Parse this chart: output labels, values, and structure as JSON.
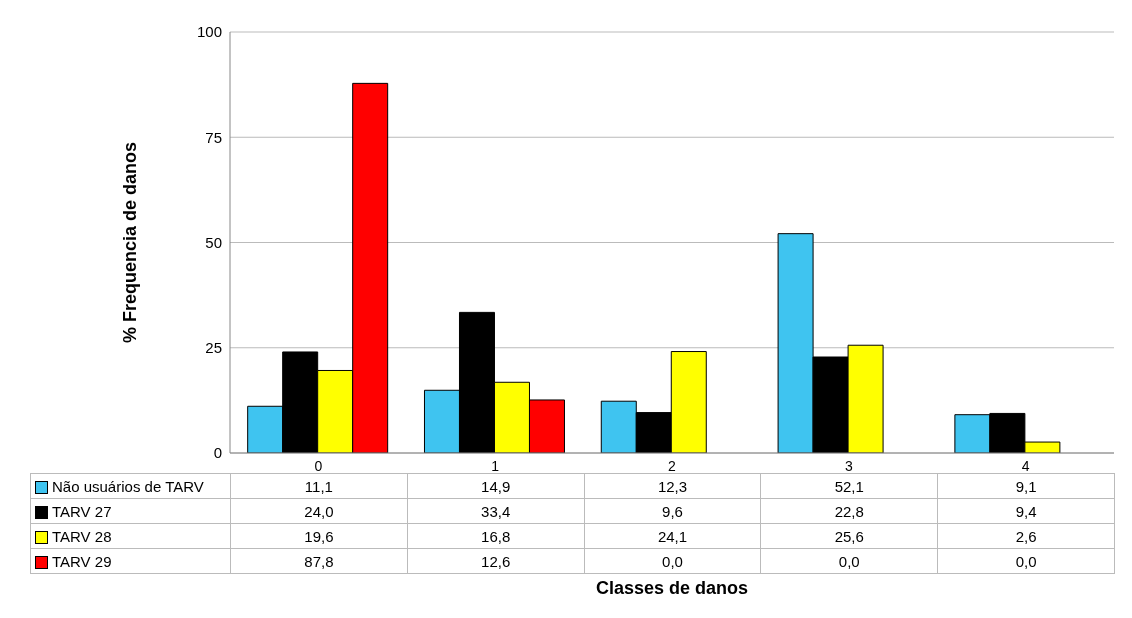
{
  "chart_data": {
    "type": "bar",
    "annotations": [
      "Classes de danos"
    ],
    "ylabel": "% Frequencia de danos",
    "categories": [
      "0",
      "1",
      "2",
      "3",
      "4"
    ],
    "series": [
      {
        "name": "Não usuários de TARV",
        "color": "#3fc4f0",
        "values": [
          11.1,
          14.9,
          12.3,
          52.1,
          9.1
        ],
        "value_labels": [
          "11,1",
          "14,9",
          "12,3",
          "52,1",
          "9,1"
        ]
      },
      {
        "name": "TARV 27",
        "color": "#000000",
        "values": [
          24.0,
          33.4,
          9.6,
          22.8,
          9.4
        ],
        "value_labels": [
          "24,0",
          "33,4",
          "9,6",
          "22,8",
          "9,4"
        ]
      },
      {
        "name": "TARV 28",
        "color": "#ffff00",
        "values": [
          19.6,
          16.8,
          24.1,
          25.6,
          2.6
        ],
        "value_labels": [
          "19,6",
          "16,8",
          "24,1",
          "25,6",
          "2,6"
        ]
      },
      {
        "name": "TARV 29",
        "color": "#ff0000",
        "values": [
          87.8,
          12.6,
          0.0,
          0.0,
          0.0
        ],
        "value_labels": [
          "87,8",
          "12,6",
          "0,0",
          "0,0",
          "0,0"
        ]
      }
    ],
    "ylim": [
      0,
      100
    ],
    "yticks": [
      0,
      25,
      50,
      75,
      100
    ],
    "grid": "y",
    "legend": "bottom left"
  }
}
